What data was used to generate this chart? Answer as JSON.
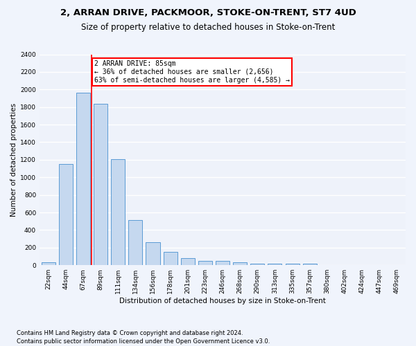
{
  "title1": "2, ARRAN DRIVE, PACKMOOR, STOKE-ON-TRENT, ST7 4UD",
  "title2": "Size of property relative to detached houses in Stoke-on-Trent",
  "xlabel": "Distribution of detached houses by size in Stoke-on-Trent",
  "ylabel": "Number of detached properties",
  "footnote1": "Contains HM Land Registry data © Crown copyright and database right 2024.",
  "footnote2": "Contains public sector information licensed under the Open Government Licence v3.0.",
  "bar_color": "#c5d8ef",
  "bar_edge_color": "#5b9bd5",
  "categories": [
    "22sqm",
    "44sqm",
    "67sqm",
    "89sqm",
    "111sqm",
    "134sqm",
    "156sqm",
    "178sqm",
    "201sqm",
    "223sqm",
    "246sqm",
    "268sqm",
    "290sqm",
    "313sqm",
    "335sqm",
    "357sqm",
    "380sqm",
    "402sqm",
    "424sqm",
    "447sqm",
    "469sqm"
  ],
  "values": [
    30,
    1150,
    1960,
    1840,
    1210,
    510,
    265,
    155,
    80,
    50,
    45,
    35,
    20,
    20,
    15,
    20,
    5,
    5,
    5,
    5,
    5
  ],
  "property_label": "2 ARRAN DRIVE: 85sqm",
  "annotation_line1": "← 36% of detached houses are smaller (2,656)",
  "annotation_line2": "63% of semi-detached houses are larger (4,585) →",
  "vline_pos": 2.5,
  "ylim": [
    0,
    2400
  ],
  "yticks": [
    0,
    200,
    400,
    600,
    800,
    1000,
    1200,
    1400,
    1600,
    1800,
    2000,
    2200,
    2400
  ],
  "bg_color": "#eef2fa",
  "grid_color": "#ffffff",
  "title1_fontsize": 9.5,
  "title2_fontsize": 8.5,
  "axis_fontsize": 7.5,
  "tick_fontsize": 6.5,
  "footnote_fontsize": 6.0
}
